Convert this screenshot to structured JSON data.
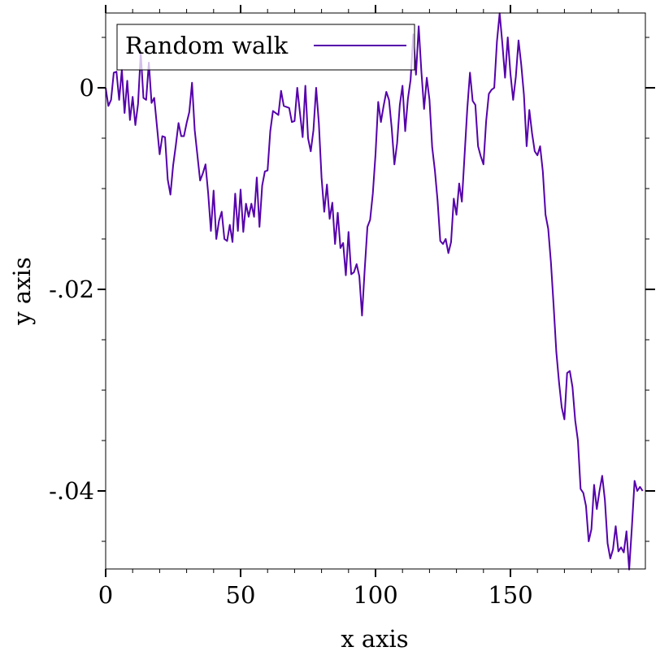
{
  "chart_data": {
    "type": "line",
    "title": "",
    "xlabel": "x axis",
    "ylabel": "y axis",
    "xlim": [
      0,
      200
    ],
    "ylim": [
      -0.0475,
      0.0075
    ],
    "x_ticks": [
      {
        "value": 0,
        "label": "0"
      },
      {
        "value": 50,
        "label": "50"
      },
      {
        "value": 100,
        "label": "100"
      },
      {
        "value": 150,
        "label": "150"
      }
    ],
    "y_ticks": [
      {
        "value": 0,
        "label": "0"
      },
      {
        "value": -0.02,
        "label": "-.02"
      },
      {
        "value": -0.04,
        "label": "-.04"
      }
    ],
    "grid": false,
    "legend": {
      "position": "top-left",
      "entries": [
        "Random walk"
      ]
    },
    "series": [
      {
        "name": "Random walk",
        "color": "#5500aa",
        "x": [
          0,
          1,
          2,
          3,
          4,
          5,
          6,
          7,
          8,
          9,
          10,
          11,
          12,
          13,
          14,
          15,
          16,
          17,
          18,
          19,
          20,
          21,
          22,
          23,
          24,
          25,
          26,
          27,
          28,
          29,
          30,
          31,
          32,
          33,
          34,
          35,
          36,
          37,
          38,
          39,
          40,
          41,
          42,
          43,
          44,
          45,
          46,
          47,
          48,
          49,
          50,
          51,
          52,
          53,
          54,
          55,
          56,
          57,
          58,
          59,
          60,
          61,
          62,
          63,
          64,
          65,
          66,
          67,
          68,
          69,
          70,
          71,
          72,
          73,
          74,
          75,
          76,
          77,
          78,
          79,
          80,
          81,
          82,
          83,
          84,
          85,
          86,
          87,
          88,
          89,
          90,
          91,
          92,
          93,
          94,
          95,
          96,
          97,
          98,
          99,
          100,
          101,
          102,
          103,
          104,
          105,
          106,
          107,
          108,
          109,
          110,
          111,
          112,
          113,
          114,
          115,
          116,
          117,
          118,
          119,
          120,
          121,
          122,
          123,
          124,
          125,
          126,
          127,
          128,
          129,
          130,
          131,
          132,
          133,
          134,
          135,
          136,
          137,
          138,
          139,
          140,
          141,
          142,
          143,
          144,
          145,
          146,
          147,
          148,
          149,
          150,
          151,
          152,
          153,
          154,
          155,
          156,
          157,
          158,
          159,
          160,
          161,
          162,
          163,
          164,
          165,
          166,
          167,
          168,
          169,
          170,
          171,
          172,
          173,
          174,
          175,
          176,
          177,
          178,
          179,
          180,
          181,
          182,
          183,
          184,
          185,
          186,
          187,
          188,
          189,
          190,
          191,
          192,
          193,
          194,
          195,
          196,
          197,
          198,
          199
        ],
        "y": [
          0.0,
          -0.0018,
          -0.0012,
          0.0015,
          0.0016,
          -0.0012,
          0.0018,
          -0.0025,
          0.0007,
          -0.0032,
          -0.0009,
          -0.0037,
          -0.0016,
          0.0035,
          -0.001,
          -0.0012,
          0.0025,
          -0.0015,
          -0.001,
          -0.0038,
          -0.0066,
          -0.0048,
          -0.0049,
          -0.0091,
          -0.0106,
          -0.0077,
          -0.0057,
          -0.0035,
          -0.0048,
          -0.0048,
          -0.0035,
          -0.0024,
          0.0005,
          -0.0042,
          -0.0067,
          -0.0092,
          -0.0085,
          -0.0076,
          -0.0105,
          -0.0142,
          -0.0102,
          -0.015,
          -0.0132,
          -0.0123,
          -0.015,
          -0.0152,
          -0.0136,
          -0.0153,
          -0.0105,
          -0.0142,
          -0.0101,
          -0.0143,
          -0.0115,
          -0.0128,
          -0.0115,
          -0.0128,
          -0.0089,
          -0.0138,
          -0.0097,
          -0.0083,
          -0.0082,
          -0.0043,
          -0.0023,
          -0.0025,
          -0.0027,
          -0.0003,
          -0.0018,
          -0.0019,
          -0.002,
          -0.0034,
          -0.0033,
          0.0,
          -0.0025,
          -0.0049,
          0.0002,
          -0.005,
          -0.0063,
          -0.0042,
          0.0,
          -0.0035,
          -0.0089,
          -0.0123,
          -0.0096,
          -0.013,
          -0.0114,
          -0.0155,
          -0.0124,
          -0.0159,
          -0.0154,
          -0.0186,
          -0.0143,
          -0.0185,
          -0.0183,
          -0.0175,
          -0.0187,
          -0.0226,
          -0.018,
          -0.0138,
          -0.0131,
          -0.0105,
          -0.0066,
          -0.0014,
          -0.0034,
          -0.0018,
          -0.0004,
          -0.0012,
          -0.004,
          -0.0076,
          -0.0055,
          -0.0017,
          0.0002,
          -0.0043,
          -0.0011,
          0.0008,
          0.0053,
          0.0013,
          0.0061,
          0.0016,
          -0.0021,
          0.001,
          -0.0012,
          -0.0059,
          -0.0082,
          -0.0112,
          -0.0152,
          -0.0155,
          -0.015,
          -0.0164,
          -0.0153,
          -0.011,
          -0.0126,
          -0.0095,
          -0.0113,
          -0.0067,
          -0.0021,
          0.0015,
          -0.0013,
          -0.0017,
          -0.0058,
          -0.0068,
          -0.0076,
          -0.0033,
          -0.0006,
          -0.0002,
          0.0,
          0.0046,
          0.0074,
          0.0044,
          0.001,
          0.005,
          0.0014,
          -0.0012,
          0.0011,
          0.0047,
          0.0023,
          -0.0007,
          -0.0058,
          -0.0022,
          -0.0045,
          -0.0063,
          -0.0067,
          -0.0058,
          -0.0083,
          -0.0126,
          -0.014,
          -0.0173,
          -0.0216,
          -0.0262,
          -0.0292,
          -0.0317,
          -0.0329,
          -0.0283,
          -0.0281,
          -0.0297,
          -0.033,
          -0.035,
          -0.0398,
          -0.0402,
          -0.0415,
          -0.045,
          -0.0438,
          -0.0394,
          -0.0418,
          -0.04,
          -0.0385,
          -0.0409,
          -0.0452,
          -0.0467,
          -0.0458,
          -0.0435,
          -0.046,
          -0.0456,
          -0.0461,
          -0.044,
          -0.0478,
          -0.0436,
          -0.039,
          -0.04,
          -0.0396,
          -0.04
        ]
      }
    ]
  }
}
